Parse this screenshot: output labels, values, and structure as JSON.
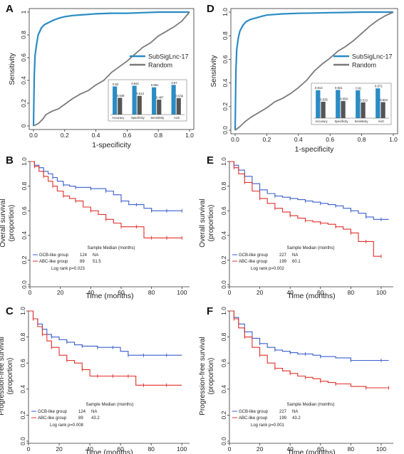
{
  "chart_data": [
    {
      "panel": "A",
      "type": "line",
      "xlabel": "1-specificity",
      "ylabel": "Sensitivity",
      "xlim": [
        0,
        1
      ],
      "ylim": [
        0,
        1
      ],
      "xticks": [
        "0.0",
        "0.2",
        "0.4",
        "0.6",
        "0.8",
        "1.0"
      ],
      "yticks": [
        "0",
        "0.2",
        "0.4",
        "0.6",
        "0.8",
        "1"
      ],
      "legend_position": "center-right",
      "series": [
        {
          "name": "SubSigLnc-17",
          "color": "#2a8cc4",
          "x": [
            0,
            0.005,
            0.01,
            0.02,
            0.03,
            0.05,
            0.07,
            0.1,
            0.13,
            0.17,
            0.2,
            0.25,
            0.3,
            0.4,
            0.5,
            0.6,
            0.7,
            0.8,
            0.9,
            1.0
          ],
          "y": [
            0,
            0.45,
            0.62,
            0.72,
            0.8,
            0.86,
            0.89,
            0.91,
            0.93,
            0.95,
            0.96,
            0.97,
            0.975,
            0.985,
            0.99,
            0.99,
            0.995,
            1.0,
            1.0,
            1.0
          ]
        },
        {
          "name": "Random",
          "color": "#7a7a7a",
          "x": [
            0,
            0.03,
            0.06,
            0.08,
            0.12,
            0.16,
            0.2,
            0.25,
            0.3,
            0.35,
            0.4,
            0.45,
            0.5,
            0.55,
            0.6,
            0.65,
            0.7,
            0.75,
            0.8,
            0.85,
            0.9,
            0.95,
            1.0
          ],
          "y": [
            0,
            0.02,
            0.06,
            0.1,
            0.13,
            0.15,
            0.19,
            0.24,
            0.28,
            0.31,
            0.36,
            0.4,
            0.47,
            0.52,
            0.57,
            0.63,
            0.69,
            0.73,
            0.79,
            0.83,
            0.87,
            0.92,
            1.0
          ]
        }
      ],
      "inset": {
        "type": "bar",
        "categories": [
          "Accuracy",
          "Specificity",
          "Sensitivity",
          "AUC"
        ],
        "series": [
          {
            "name": "SubSigLnc-17",
            "color": "#2a8cc4",
            "values": [
              0.92,
              0.942,
              0.891,
              0.97
            ]
          },
          {
            "name": "Random",
            "color": "#555555",
            "values": [
              0.548,
              0.612,
              0.487,
              0.536
            ]
          }
        ]
      }
    },
    {
      "panel": "D",
      "type": "line",
      "xlabel": "1-specificity",
      "ylabel": "Sensitivity",
      "xlim": [
        0,
        1
      ],
      "ylim": [
        0,
        1
      ],
      "xticks": [
        "0.0",
        "0.2",
        "0.4",
        "0.6",
        "0.8",
        "1.0"
      ],
      "yticks": [
        "0.0",
        "0.2",
        "0.4",
        "0.6",
        "0.8",
        "1.0"
      ],
      "legend_position": "center-right",
      "series": [
        {
          "name": "SubSigLnc-17",
          "color": "#2a8cc4",
          "x": [
            0,
            0.005,
            0.01,
            0.02,
            0.03,
            0.05,
            0.07,
            0.1,
            0.13,
            0.17,
            0.2,
            0.25,
            0.3,
            0.4,
            0.5,
            0.6,
            0.7,
            0.8,
            0.9,
            1.0
          ],
          "y": [
            0,
            0.5,
            0.68,
            0.78,
            0.84,
            0.89,
            0.92,
            0.94,
            0.95,
            0.965,
            0.975,
            0.98,
            0.985,
            0.99,
            0.992,
            0.995,
            0.997,
            1.0,
            1.0,
            1.0
          ]
        },
        {
          "name": "Random",
          "color": "#7a7a7a",
          "x": [
            0,
            0.03,
            0.06,
            0.1,
            0.15,
            0.2,
            0.25,
            0.3,
            0.35,
            0.4,
            0.45,
            0.5,
            0.55,
            0.6,
            0.65,
            0.7,
            0.75,
            0.8,
            0.85,
            0.9,
            0.95,
            1.0
          ],
          "y": [
            0,
            0.03,
            0.07,
            0.11,
            0.15,
            0.19,
            0.24,
            0.27,
            0.31,
            0.36,
            0.42,
            0.5,
            0.56,
            0.61,
            0.67,
            0.71,
            0.76,
            0.82,
            0.88,
            0.93,
            0.97,
            1.0
          ]
        }
      ],
      "inset": {
        "type": "bar",
        "categories": [
          "Accuracy",
          "Specificity",
          "Sensitivity",
          "AUC"
        ],
        "series": [
          {
            "name": "SubSigLnc-17",
            "color": "#2a8cc4",
            "values": [
              0.913,
              0.921,
              0.91,
              0.972
            ]
          },
          {
            "name": "Random",
            "color": "#555555",
            "values": [
              0.535,
              0.558,
              0.513,
              0.523
            ]
          }
        ]
      }
    },
    {
      "panel": "B",
      "type": "line",
      "xlabel": "Time (months)",
      "ylabel": "Overall survival\n(proportion)",
      "xlim": [
        0,
        105
      ],
      "ylim": [
        0,
        1
      ],
      "xticks": [
        "0",
        "20",
        "40",
        "60",
        "80",
        "100"
      ],
      "yticks": [
        "0.0",
        "0.2",
        "0.4",
        "0.6",
        "0.8",
        "1.0"
      ],
      "legend_position": "bottom-left",
      "legend_header": "Sample Median (months)",
      "series": [
        {
          "name": "GCB-like group",
          "n": "124",
          "median": "NA",
          "color": "#3a5fcd",
          "x": [
            0,
            3,
            6,
            9,
            12,
            15,
            18,
            22,
            26,
            30,
            35,
            40,
            45,
            50,
            55,
            60,
            65,
            70,
            75,
            80,
            85,
            90,
            95,
            100
          ],
          "y": [
            1.0,
            0.97,
            0.95,
            0.92,
            0.9,
            0.87,
            0.84,
            0.81,
            0.8,
            0.79,
            0.79,
            0.78,
            0.78,
            0.76,
            0.73,
            0.68,
            0.65,
            0.65,
            0.62,
            0.6,
            0.6,
            0.6,
            0.6,
            0.6
          ]
        },
        {
          "name": "ABC-like group",
          "n": "89",
          "median": "51.5",
          "color": "#e0302a",
          "x": [
            0,
            3,
            6,
            9,
            12,
            15,
            18,
            22,
            26,
            30,
            35,
            40,
            45,
            50,
            55,
            60,
            65,
            70,
            75,
            80,
            85,
            90,
            95,
            100
          ],
          "y": [
            1.0,
            0.96,
            0.92,
            0.88,
            0.84,
            0.8,
            0.76,
            0.72,
            0.7,
            0.68,
            0.63,
            0.6,
            0.57,
            0.53,
            0.5,
            0.47,
            0.47,
            0.47,
            0.38,
            0.38,
            0.38,
            0.38,
            0.38,
            0.38
          ]
        }
      ],
      "annotation": "Log rank p=0.023"
    },
    {
      "panel": "E",
      "type": "line",
      "xlabel": "Time (months)",
      "ylabel": "Overall survival\n(proportion)",
      "xlim": [
        0,
        108
      ],
      "ylim": [
        0,
        1
      ],
      "xticks": [
        "0",
        "20",
        "40",
        "60",
        "80",
        "100"
      ],
      "yticks": [
        "0.0",
        "0.2",
        "0.4",
        "0.6",
        "0.8",
        "1.0"
      ],
      "legend_position": "bottom-left",
      "legend_header": "Sample Median (months)",
      "series": [
        {
          "name": "GCB-like group",
          "n": "227",
          "median": "NA",
          "color": "#3a5fcd",
          "x": [
            0,
            3,
            6,
            10,
            15,
            20,
            25,
            30,
            35,
            40,
            45,
            50,
            55,
            60,
            65,
            70,
            75,
            80,
            85,
            90,
            95,
            100,
            105
          ],
          "y": [
            1.0,
            0.97,
            0.93,
            0.88,
            0.82,
            0.77,
            0.74,
            0.72,
            0.71,
            0.7,
            0.69,
            0.68,
            0.67,
            0.66,
            0.65,
            0.64,
            0.62,
            0.6,
            0.58,
            0.55,
            0.53,
            0.53,
            0.53
          ]
        },
        {
          "name": "ABC-like group",
          "n": "199",
          "median": "60.1",
          "color": "#e0302a",
          "x": [
            0,
            3,
            6,
            10,
            15,
            20,
            25,
            30,
            35,
            40,
            45,
            50,
            55,
            60,
            65,
            70,
            75,
            80,
            85,
            90,
            95,
            100
          ],
          "y": [
            1.0,
            0.95,
            0.9,
            0.83,
            0.76,
            0.7,
            0.66,
            0.62,
            0.59,
            0.56,
            0.54,
            0.52,
            0.51,
            0.5,
            0.49,
            0.47,
            0.45,
            0.42,
            0.35,
            0.35,
            0.23,
            0.23
          ]
        }
      ],
      "annotation": "Log rank p=0.002"
    },
    {
      "panel": "C",
      "type": "line",
      "xlabel": "Time (months)",
      "ylabel": "Progression-free survival\n(proportion)",
      "xlim": [
        0,
        105
      ],
      "ylim": [
        0,
        1
      ],
      "xticks": [
        "0",
        "20",
        "40",
        "60",
        "80",
        "100"
      ],
      "yticks": [
        "0.0",
        "0.2",
        "0.4",
        "0.6",
        "0.8",
        "1.0"
      ],
      "legend_position": "bottom-left",
      "legend_header": "Sample Median (months)",
      "series": [
        {
          "name": "GCB-like group",
          "n": "124",
          "median": "NA",
          "color": "#3a5fcd",
          "x": [
            0,
            3,
            6,
            9,
            12,
            15,
            20,
            25,
            30,
            35,
            40,
            45,
            50,
            55,
            60,
            65,
            70,
            75,
            80,
            90,
            100
          ],
          "y": [
            1.0,
            0.94,
            0.9,
            0.86,
            0.82,
            0.8,
            0.78,
            0.76,
            0.74,
            0.73,
            0.73,
            0.72,
            0.72,
            0.72,
            0.69,
            0.66,
            0.66,
            0.66,
            0.66,
            0.66,
            0.66
          ]
        },
        {
          "name": "ABC-like group",
          "n": "89",
          "median": "43.2",
          "color": "#e0302a",
          "x": [
            0,
            3,
            6,
            9,
            12,
            15,
            20,
            25,
            30,
            35,
            40,
            45,
            50,
            55,
            60,
            65,
            70,
            75,
            80,
            90,
            100
          ],
          "y": [
            1.0,
            0.94,
            0.88,
            0.82,
            0.77,
            0.72,
            0.66,
            0.62,
            0.6,
            0.55,
            0.5,
            0.5,
            0.5,
            0.5,
            0.5,
            0.5,
            0.43,
            0.43,
            0.43,
            0.43,
            0.43
          ]
        }
      ],
      "annotation": "Log rank p=0.008"
    },
    {
      "panel": "F",
      "type": "line",
      "xlabel": "Time (months)",
      "ylabel": "Progression-free survival\n(proportion)",
      "xlim": [
        0,
        108
      ],
      "ylim": [
        0,
        1
      ],
      "xticks": [
        "0",
        "20",
        "40",
        "60",
        "80",
        "100"
      ],
      "yticks": [
        "0.0",
        "0.2",
        "0.4",
        "0.6",
        "0.8",
        "1.0"
      ],
      "legend_position": "bottom-left",
      "legend_header": "Sample Median (months)",
      "series": [
        {
          "name": "GCB-like group",
          "n": "227",
          "median": "NA",
          "color": "#3a5fcd",
          "x": [
            0,
            3,
            6,
            10,
            15,
            20,
            25,
            30,
            35,
            40,
            45,
            50,
            55,
            60,
            70,
            80,
            90,
            100,
            105
          ],
          "y": [
            1.0,
            0.95,
            0.9,
            0.84,
            0.79,
            0.75,
            0.72,
            0.7,
            0.69,
            0.68,
            0.67,
            0.67,
            0.66,
            0.65,
            0.64,
            0.62,
            0.62,
            0.62,
            0.62
          ]
        },
        {
          "name": "ABC-like group",
          "n": "199",
          "median": "43.2",
          "color": "#e0302a",
          "x": [
            0,
            3,
            6,
            10,
            15,
            20,
            25,
            30,
            35,
            40,
            45,
            50,
            55,
            60,
            65,
            70,
            80,
            90,
            100,
            105
          ],
          "y": [
            1.0,
            0.94,
            0.87,
            0.8,
            0.72,
            0.66,
            0.6,
            0.56,
            0.54,
            0.52,
            0.5,
            0.49,
            0.48,
            0.46,
            0.45,
            0.44,
            0.42,
            0.41,
            0.41,
            0.41
          ]
        }
      ],
      "annotation": "Log rank p=0.001"
    }
  ]
}
